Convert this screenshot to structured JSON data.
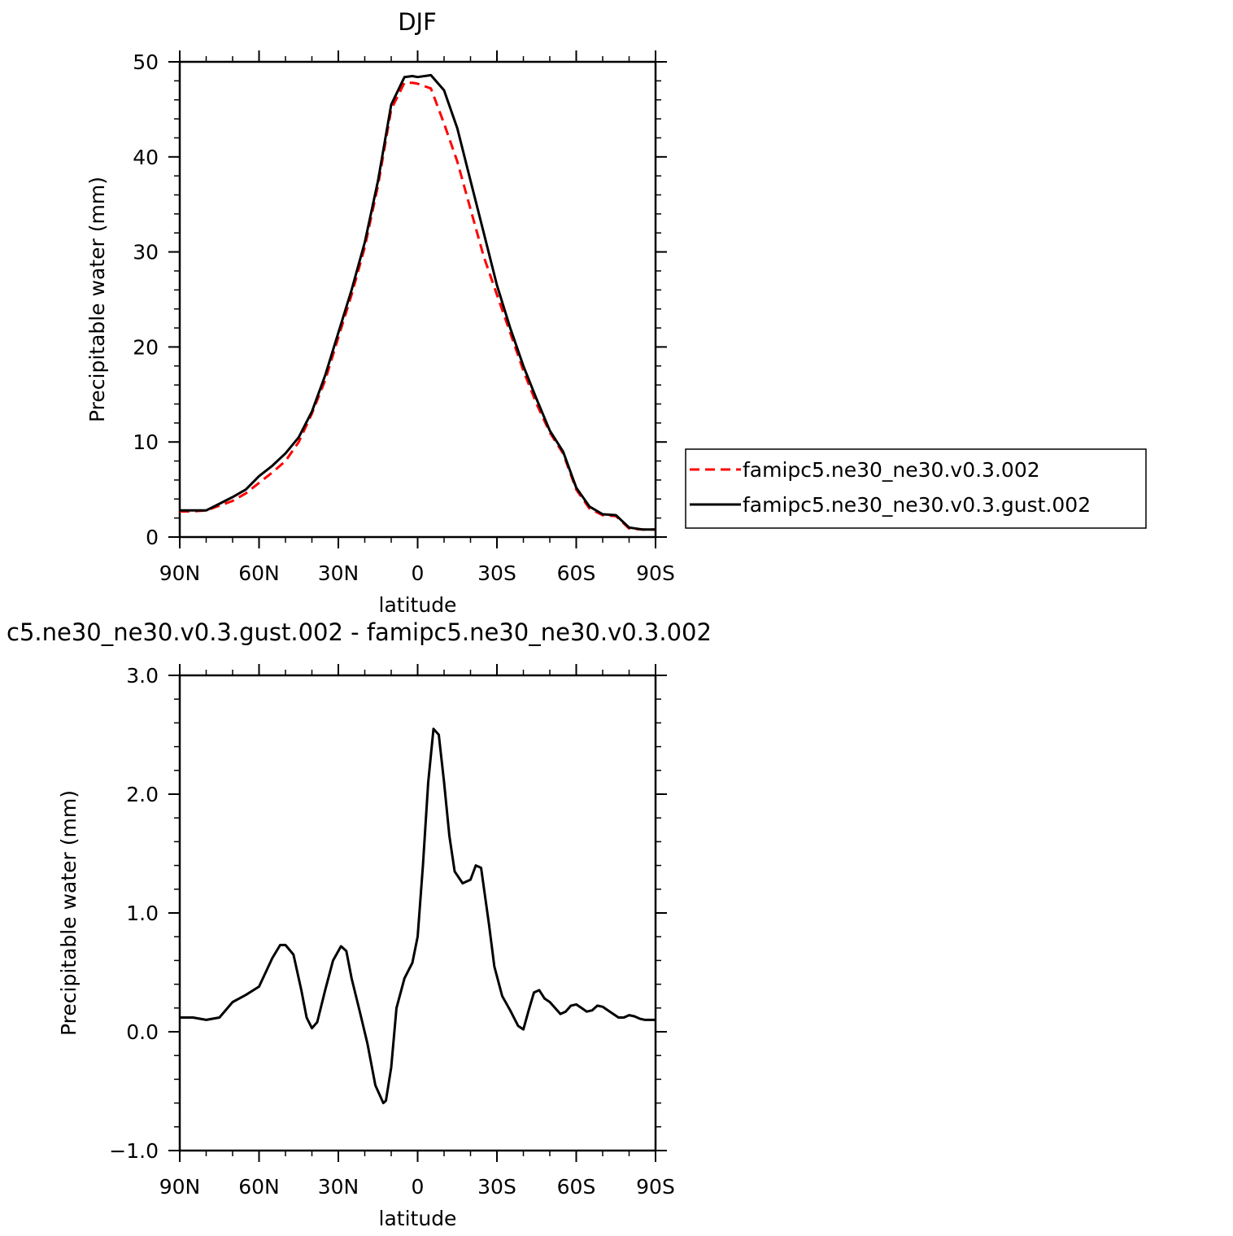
{
  "chart_data": [
    {
      "type": "line",
      "title": "DJF",
      "xlabel": "latitude",
      "ylabel": "Precipitable water (mm)",
      "xlim": [
        90,
        -90
      ],
      "ylim": [
        0,
        50
      ],
      "x_ticks": [
        90,
        60,
        30,
        0,
        -30,
        -60,
        -90
      ],
      "x_tick_labels": [
        "90N",
        "60N",
        "30N",
        "0",
        "30S",
        "60S",
        "90S"
      ],
      "y_ticks": [
        0,
        10,
        20,
        30,
        40,
        50
      ],
      "y_tick_labels": [
        "0",
        "10",
        "20",
        "30",
        "40",
        "50"
      ],
      "grid": false,
      "legend": "right",
      "series": [
        {
          "name": "famipc5.ne30_ne30.v0.3.002",
          "color": "#ff0000",
          "dash": "dashed",
          "x": [
            90,
            85,
            80,
            75,
            70,
            65,
            60,
            55,
            50,
            45,
            40,
            35,
            30,
            25,
            20,
            15,
            10,
            5,
            2,
            0,
            -5,
            -10,
            -15,
            -20,
            -25,
            -30,
            -35,
            -40,
            -45,
            -50,
            -55,
            -60,
            -65,
            -70,
            -75,
            -80,
            -85,
            -90
          ],
          "y": [
            2.7,
            2.7,
            2.8,
            3.3,
            3.8,
            4.6,
            5.7,
            6.8,
            8.0,
            10.0,
            13.0,
            16.5,
            21.0,
            25.5,
            30.5,
            37.0,
            45.0,
            47.8,
            47.8,
            47.7,
            47.2,
            43.5,
            39.5,
            34.5,
            29.5,
            25.5,
            21.5,
            17.5,
            14.0,
            11.0,
            8.8,
            5.0,
            3.0,
            2.3,
            2.2,
            0.9,
            0.8,
            0.8
          ]
        },
        {
          "name": "famipc5.ne30_ne30.v0.3.gust.002",
          "color": "#000000",
          "dash": "solid",
          "x": [
            90,
            85,
            80,
            75,
            70,
            65,
            60,
            55,
            50,
            45,
            40,
            35,
            30,
            25,
            20,
            15,
            10,
            5,
            2,
            0,
            -5,
            -10,
            -15,
            -20,
            -25,
            -30,
            -35,
            -40,
            -45,
            -50,
            -55,
            -60,
            -65,
            -70,
            -75,
            -80,
            -85,
            -90
          ],
          "y": [
            2.8,
            2.8,
            2.8,
            3.5,
            4.2,
            5.0,
            6.4,
            7.5,
            8.8,
            10.5,
            13.2,
            17.0,
            21.5,
            26.0,
            31.0,
            37.5,
            45.5,
            48.4,
            48.5,
            48.4,
            48.6,
            47.0,
            43.0,
            37.5,
            32.0,
            26.5,
            22.0,
            18.0,
            14.5,
            11.2,
            9.0,
            5.2,
            3.2,
            2.4,
            2.3,
            1.0,
            0.8,
            0.8
          ]
        }
      ]
    },
    {
      "type": "line",
      "title": "c5.ne30_ne30.v0.3.gust.002 - famipc5.ne30_ne30.v0.3.002",
      "xlabel": "latitude",
      "ylabel": "Precipitable water (mm)",
      "xlim": [
        90,
        -90
      ],
      "ylim": [
        -1.0,
        3.0
      ],
      "x_ticks": [
        90,
        60,
        30,
        0,
        -30,
        -60,
        -90
      ],
      "x_tick_labels": [
        "90N",
        "60N",
        "30N",
        "0",
        "30S",
        "60S",
        "90S"
      ],
      "y_ticks": [
        -1.0,
        0.0,
        1.0,
        2.0,
        3.0
      ],
      "y_tick_labels": [
        "−1.0",
        "0.0",
        "1.0",
        "2.0",
        "3.0"
      ],
      "grid": false,
      "series": [
        {
          "color": "#000000",
          "dash": "solid",
          "x": [
            90,
            85,
            80,
            75,
            70,
            65,
            60,
            55,
            52,
            50,
            47,
            44,
            42,
            40,
            38,
            35,
            32,
            29,
            27,
            25,
            22,
            19,
            16,
            13,
            12,
            10,
            8,
            5,
            2,
            0,
            -2,
            -4,
            -6,
            -8,
            -10,
            -12,
            -14,
            -17,
            -20,
            -22,
            -24,
            -27,
            -29,
            -32,
            -35,
            -38,
            -40,
            -42,
            -44,
            -46,
            -48,
            -50,
            -52,
            -54,
            -56,
            -58,
            -60,
            -62,
            -64,
            -66,
            -68,
            -70,
            -72,
            -74,
            -76,
            -78,
            -80,
            -82,
            -84,
            -86,
            -88,
            -90
          ],
          "y": [
            0.12,
            0.12,
            0.1,
            0.12,
            0.25,
            0.31,
            0.38,
            0.62,
            0.73,
            0.73,
            0.65,
            0.35,
            0.12,
            0.03,
            0.08,
            0.35,
            0.6,
            0.72,
            0.68,
            0.45,
            0.18,
            -0.1,
            -0.45,
            -0.6,
            -0.58,
            -0.3,
            0.2,
            0.45,
            0.58,
            0.8,
            1.4,
            2.1,
            2.55,
            2.5,
            2.1,
            1.65,
            1.35,
            1.25,
            1.28,
            1.4,
            1.38,
            0.9,
            0.55,
            0.3,
            0.18,
            0.05,
            0.02,
            0.18,
            0.33,
            0.35,
            0.28,
            0.25,
            0.2,
            0.15,
            0.17,
            0.22,
            0.23,
            0.2,
            0.17,
            0.18,
            0.22,
            0.21,
            0.18,
            0.15,
            0.12,
            0.12,
            0.14,
            0.13,
            0.11,
            0.1,
            0.1,
            0.1
          ]
        }
      ]
    }
  ]
}
